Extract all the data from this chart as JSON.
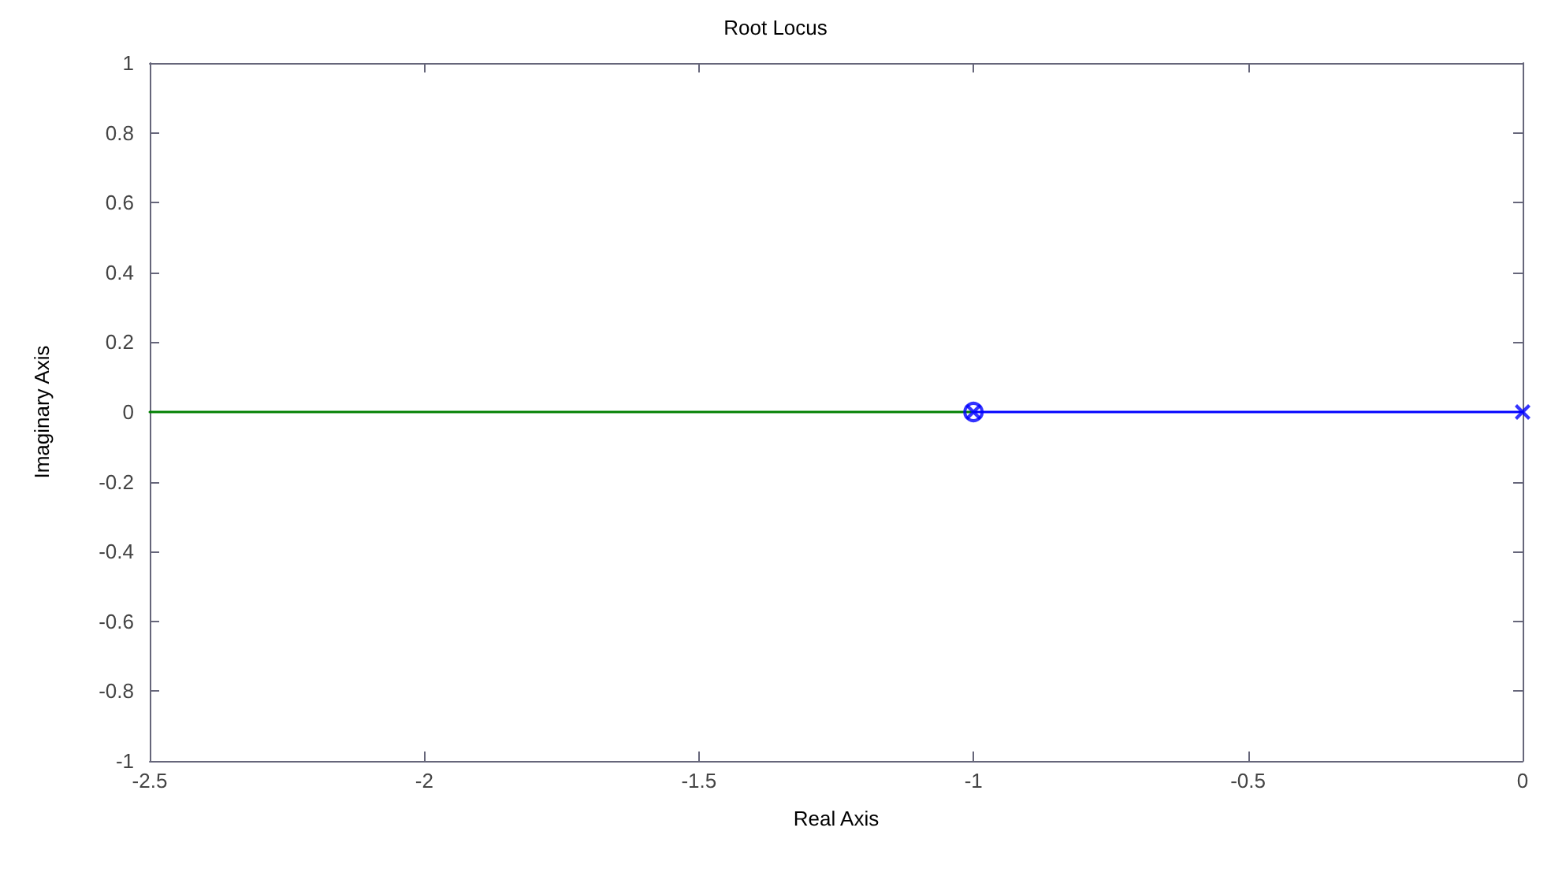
{
  "chart_data": {
    "type": "line",
    "title": "Root Locus",
    "xlabel": "Real Axis",
    "ylabel": "Imaginary Axis",
    "xlim": [
      -2.5,
      0
    ],
    "xticks": [
      -2.5,
      -2,
      -1.5,
      -1,
      -0.5,
      0
    ],
    "ylim": [
      -1,
      1
    ],
    "yticks": [
      -1,
      -0.8,
      -0.6,
      -0.4,
      -0.2,
      0,
      0.2,
      0.4,
      0.6,
      0.8,
      1
    ],
    "grid": false,
    "line_style": "solid",
    "series": [
      {
        "color": "#008000",
        "x": [
          -2.5,
          -1
        ],
        "values": [
          0,
          0
        ],
        "marker": "none"
      },
      {
        "color": "#0000ff",
        "x": [
          -1,
          0
        ],
        "values": [
          0,
          0
        ],
        "marker": "none"
      },
      {
        "type": "scatter",
        "color": "#0000ff",
        "x": [
          -1
        ],
        "values": [
          0
        ],
        "marker": "circle"
      },
      {
        "type": "scatter",
        "color": "#0000ff",
        "x": [
          -1,
          0
        ],
        "values": [
          0,
          0
        ],
        "marker": "cross"
      }
    ]
  }
}
